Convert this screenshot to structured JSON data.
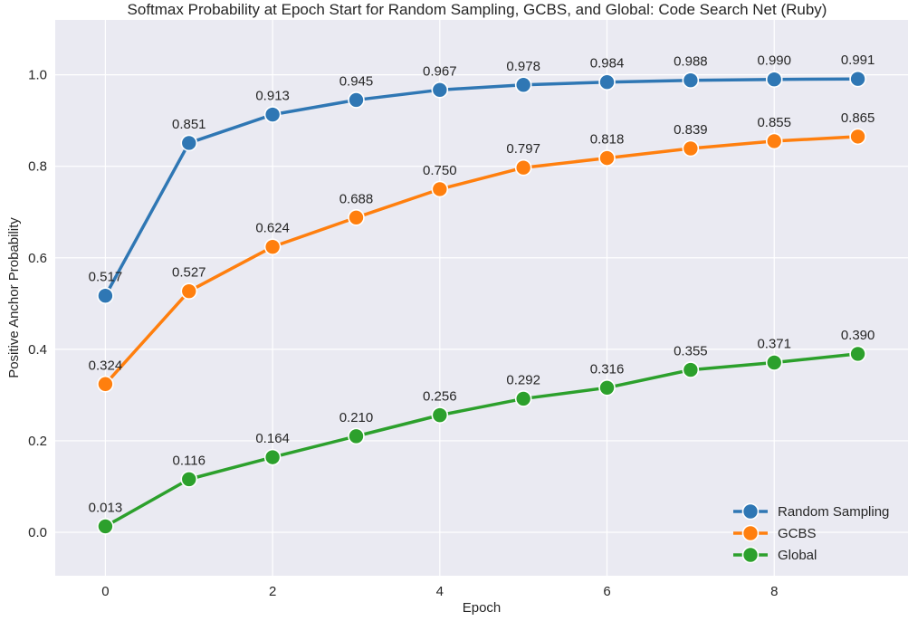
{
  "chart_data": {
    "type": "line",
    "title": "Softmax Probability at Epoch Start for Random Sampling, GCBS, and Global: Code Search Net (Ruby)",
    "xlabel": "Epoch",
    "ylabel": "Positive Anchor Probability",
    "x": [
      0,
      1,
      2,
      3,
      4,
      5,
      6,
      7,
      8,
      9
    ],
    "xlim": [
      -0.6,
      9.6
    ],
    "ylim": [
      -0.095,
      1.12
    ],
    "x_ticks": [
      0,
      2,
      4,
      6,
      8
    ],
    "y_ticks": [
      0.0,
      0.2,
      0.4,
      0.6,
      0.8,
      1.0
    ],
    "x_tick_labels": [
      "0",
      "2",
      "4",
      "6",
      "8"
    ],
    "y_tick_labels": [
      "0.0",
      "0.2",
      "0.4",
      "0.6",
      "0.8",
      "1.0"
    ],
    "grid": true,
    "legend_position": "bottom-right",
    "series": [
      {
        "name": "Random Sampling",
        "color": "#2f77b4",
        "values": [
          0.517,
          0.851,
          0.913,
          0.945,
          0.967,
          0.978,
          0.984,
          0.988,
          0.99,
          0.991
        ],
        "labels": [
          "0.517",
          "0.851",
          "0.913",
          "0.945",
          "0.967",
          "0.978",
          "0.984",
          "0.988",
          "0.990",
          "0.991"
        ]
      },
      {
        "name": "GCBS",
        "color": "#ff7f0e",
        "values": [
          0.324,
          0.527,
          0.624,
          0.688,
          0.75,
          0.797,
          0.818,
          0.839,
          0.855,
          0.865
        ],
        "labels": [
          "0.324",
          "0.527",
          "0.624",
          "0.688",
          "0.750",
          "0.797",
          "0.818",
          "0.839",
          "0.855",
          "0.865"
        ]
      },
      {
        "name": "Global",
        "color": "#2ca02c",
        "values": [
          0.013,
          0.116,
          0.164,
          0.21,
          0.256,
          0.292,
          0.316,
          0.355,
          0.371,
          0.39
        ],
        "labels": [
          "0.013",
          "0.116",
          "0.164",
          "0.210",
          "0.256",
          "0.292",
          "0.316",
          "0.355",
          "0.371",
          "0.390"
        ]
      }
    ]
  }
}
